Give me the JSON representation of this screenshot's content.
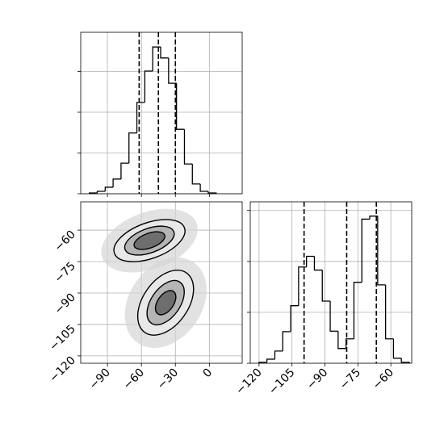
{
  "chart_data": [
    {
      "type": "histogram",
      "bins": [
        -106,
        -99,
        -92,
        -85,
        -78,
        -71,
        -64,
        -57,
        -50,
        -43,
        -36,
        -29,
        -22,
        -15,
        -8,
        -1,
        6
      ],
      "values": [
        0.02,
        0.06,
        0.16,
        0.36,
        0.75,
        1.49,
        2.24,
        3.01,
        3.6,
        3.33,
        2.71,
        1.58,
        0.73,
        0.24,
        0.06,
        0.02
      ],
      "quantiles": [
        -62,
        -45,
        -30
      ],
      "color": "#000000",
      "xlim": [
        -113.6,
        29
      ],
      "ylim": [
        0,
        3.96
      ],
      "xticks": [
        -90,
        -60,
        -30,
        0
      ],
      "yticks": [
        0,
        1,
        2,
        3
      ],
      "grid": true
    },
    {
      "type": "contour2d",
      "color": "#000000",
      "xlim": [
        -113.6,
        29
      ],
      "ylim": [
        -123.5,
        -46.5
      ],
      "xticks": [
        {
          "value": -90,
          "label": "−90"
        },
        {
          "value": -60,
          "label": "−60"
        },
        {
          "value": -30,
          "label": "−30"
        },
        {
          "value": 0,
          "label": "0"
        }
      ],
      "yticks": [
        {
          "value": -60,
          "label": "−60"
        },
        {
          "value": -75,
          "label": "−75"
        },
        {
          "value": -90,
          "label": "−90"
        },
        {
          "value": -105,
          "label": "−105"
        },
        {
          "value": -120,
          "label": "−120"
        }
      ],
      "grid": true,
      "blobs": [
        {
          "x": -52.9,
          "y": -65,
          "rx": [
            32.9,
            22.9,
            14.3
          ],
          "ry": [
            8.5,
            5.8,
            3.5
          ],
          "angle": -20
        },
        {
          "x": -38.6,
          "y": -94.6,
          "rx": [
            32.1,
            22.1,
            12.1
          ],
          "ry": [
            10.8,
            6.9,
            3.8
          ],
          "angle": -55
        }
      ]
    },
    {
      "type": "histogram",
      "bins": [
        -120,
        -116.4,
        -112.8,
        -109.2,
        -105.6,
        -102,
        -98.4,
        -94.8,
        -91.2,
        -87.6,
        -84,
        -80.4,
        -76.8,
        -73.2,
        -69.6,
        -66,
        -62.4,
        -58.8,
        -55.2,
        -51.6
      ],
      "values": [
        0.02,
        0.08,
        0.24,
        0.62,
        1.13,
        1.89,
        2.1,
        1.83,
        1.22,
        0.63,
        0.29,
        0.48,
        1.59,
        2.83,
        2.89,
        1.54,
        0.48,
        0.1,
        0.02
      ],
      "quantiles": [
        -99.5,
        -80.1,
        -66.6
      ],
      "color": "#000000",
      "xlim": [
        -124,
        -50.5
      ],
      "ylim": [
        0,
        3.17
      ],
      "xticks": [
        {
          "value": -120,
          "label": "−120"
        },
        {
          "value": -105,
          "label": "−105"
        },
        {
          "value": -90,
          "label": "−90"
        },
        {
          "value": -75,
          "label": "−75"
        },
        {
          "value": -60,
          "label": "−60"
        }
      ],
      "yticks": [
        0,
        1,
        2,
        3
      ],
      "grid": true
    }
  ]
}
